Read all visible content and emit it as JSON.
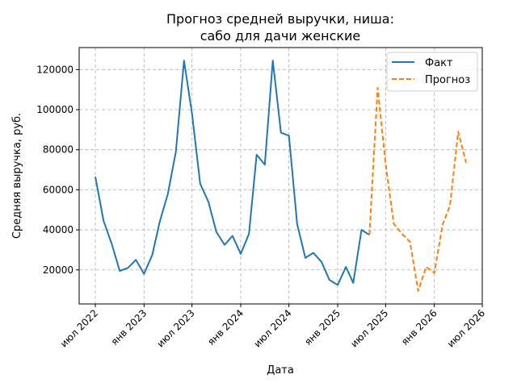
{
  "chart_data": {
    "type": "line",
    "title": "Прогноз средней выручки, ниша:",
    "subtitle": "сабо для дачи женские",
    "xlabel": "Дата",
    "ylabel": "Средняя выручка, руб.",
    "x_ticks": [
      "2022-07-01",
      "2023-01-01",
      "2023-07-01",
      "2024-01-01",
      "2024-07-01",
      "2025-01-01",
      "2025-07-01",
      "2026-01-01",
      "2026-07-01"
    ],
    "x_tick_labels": [
      "июл 2022",
      "янв 2023",
      "июл 2023",
      "янв 2024",
      "июл 2024",
      "янв 2025",
      "июл 2025",
      "янв 2026",
      "июл 2026"
    ],
    "xlim": [
      "2022-05-01",
      "2026-07-01"
    ],
    "y_ticks": [
      20000,
      40000,
      60000,
      80000,
      100000,
      120000
    ],
    "y_tick_labels": [
      "20000",
      "40000",
      "60000",
      "80000",
      "100000",
      "120000"
    ],
    "ylim": [
      3000,
      131000
    ],
    "grid": true,
    "legend_position": "top-right",
    "series": [
      {
        "name": "Факт",
        "color": "#1f77b4",
        "style": "solid",
        "x": [
          "2022-07-01",
          "2022-08-01",
          "2022-09-01",
          "2022-10-01",
          "2022-11-01",
          "2022-12-01",
          "2023-01-01",
          "2023-02-01",
          "2023-03-01",
          "2023-04-01",
          "2023-05-01",
          "2023-06-01",
          "2023-07-01",
          "2023-08-01",
          "2023-09-01",
          "2023-10-01",
          "2023-11-01",
          "2023-12-01",
          "2024-01-01",
          "2024-02-01",
          "2024-03-01",
          "2024-04-01",
          "2024-05-01",
          "2024-06-01",
          "2024-07-01",
          "2024-08-01",
          "2024-09-01",
          "2024-10-01",
          "2024-11-01",
          "2024-12-01",
          "2025-01-01",
          "2025-02-01",
          "2025-03-01",
          "2025-04-01",
          "2025-05-01"
        ],
        "y": [
          66500,
          44500,
          33000,
          19500,
          21000,
          25000,
          18000,
          27500,
          44000,
          58000,
          79000,
          124500,
          98000,
          63000,
          54000,
          39000,
          32500,
          37000,
          28000,
          38000,
          77500,
          72500,
          124500,
          88500,
          87000,
          43000,
          26000,
          28500,
          24000,
          15000,
          12500,
          21500,
          13500,
          40000,
          37500
        ]
      },
      {
        "name": "Прогноз",
        "color": "#ff7f0e",
        "style": "dashed",
        "x": [
          "2025-05-01",
          "2025-06-01",
          "2025-07-01",
          "2025-08-01",
          "2025-09-01",
          "2025-10-01",
          "2025-11-01",
          "2025-12-01",
          "2026-01-01",
          "2026-02-01",
          "2026-03-01",
          "2026-04-01",
          "2026-05-01"
        ],
        "y": [
          37500,
          111000,
          73000,
          43000,
          38000,
          34000,
          9500,
          21500,
          18500,
          42500,
          52000,
          89000,
          73500
        ]
      }
    ]
  }
}
